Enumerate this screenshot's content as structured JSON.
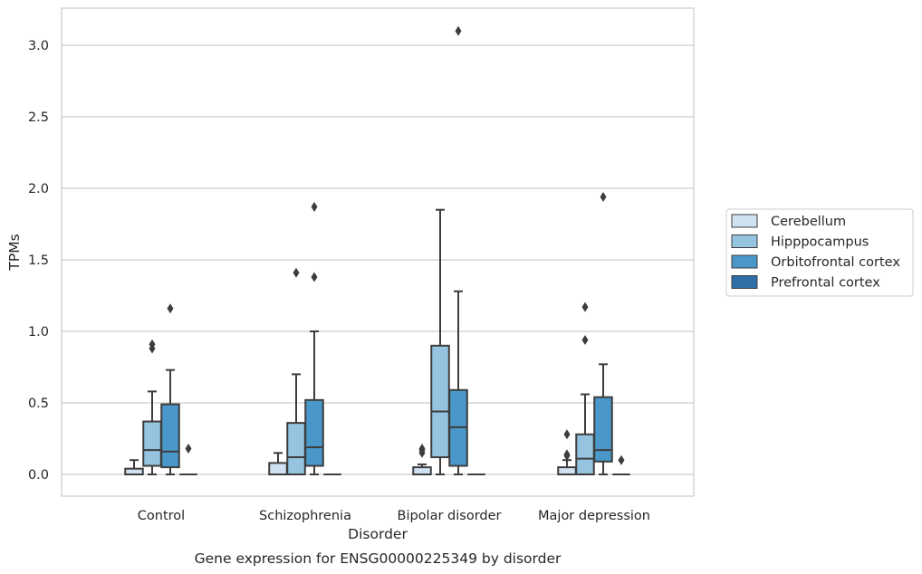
{
  "chart_data": {
    "type": "box",
    "title": "",
    "caption": "Gene expression for ENSG00000225349 by disorder",
    "xlabel": "Disorder",
    "ylabel": "TPMs",
    "ylim": [
      -0.15,
      3.25
    ],
    "yticks": [
      0.0,
      0.5,
      1.0,
      1.5,
      2.0,
      2.5,
      3.0
    ],
    "ytick_labels": [
      "0.0",
      "0.5",
      "1.0",
      "1.5",
      "2.0",
      "2.5",
      "3.0"
    ],
    "grid": "horizontal",
    "legend_position": "right",
    "categories": [
      "Control",
      "Schizophrenia",
      "Bipolar disorder",
      "Major depression"
    ],
    "series": [
      {
        "name": "Cerebellum",
        "color": "#d0e1f2",
        "boxes": [
          {
            "whislo": 0.0,
            "q1": 0.0,
            "med": 0.0,
            "q3": 0.04,
            "whishi": 0.1,
            "fliers": []
          },
          {
            "whislo": 0.0,
            "q1": 0.0,
            "med": 0.0,
            "q3": 0.08,
            "whishi": 0.15,
            "fliers": []
          },
          {
            "whislo": 0.0,
            "q1": 0.0,
            "med": 0.0,
            "q3": 0.05,
            "whishi": 0.07,
            "fliers": [
              0.15,
              0.17,
              0.18
            ]
          },
          {
            "whislo": 0.0,
            "q1": 0.0,
            "med": 0.0,
            "q3": 0.05,
            "whishi": 0.1,
            "fliers": [
              0.13,
              0.14,
              0.28
            ]
          }
        ]
      },
      {
        "name": "Hipppocampus",
        "color": "#94c4df",
        "boxes": [
          {
            "whislo": 0.0,
            "q1": 0.06,
            "med": 0.17,
            "q3": 0.37,
            "whishi": 0.58,
            "fliers": [
              0.88,
              0.91
            ]
          },
          {
            "whislo": 0.0,
            "q1": 0.0,
            "med": 0.12,
            "q3": 0.36,
            "whishi": 0.7,
            "fliers": [
              1.41
            ]
          },
          {
            "whislo": 0.0,
            "q1": 0.12,
            "med": 0.44,
            "q3": 0.9,
            "whishi": 1.85,
            "fliers": []
          },
          {
            "whislo": 0.0,
            "q1": 0.0,
            "med": 0.11,
            "q3": 0.28,
            "whishi": 0.56,
            "fliers": [
              0.94,
              1.17
            ]
          }
        ]
      },
      {
        "name": "Orbitofrontal cortex",
        "color": "#4a98c9",
        "boxes": [
          {
            "whislo": 0.0,
            "q1": 0.05,
            "med": 0.16,
            "q3": 0.49,
            "whishi": 0.73,
            "fliers": [
              1.16
            ]
          },
          {
            "whislo": 0.0,
            "q1": 0.06,
            "med": 0.19,
            "q3": 0.52,
            "whishi": 1.0,
            "fliers": [
              1.38,
              1.87
            ]
          },
          {
            "whislo": 0.0,
            "q1": 0.06,
            "med": 0.33,
            "q3": 0.59,
            "whishi": 1.28,
            "fliers": [
              3.1
            ]
          },
          {
            "whislo": 0.0,
            "q1": 0.09,
            "med": 0.17,
            "q3": 0.54,
            "whishi": 0.77,
            "fliers": [
              1.94
            ]
          }
        ]
      },
      {
        "name": "Prefrontal cortex",
        "color": "#2e6fa7",
        "boxes": [
          {
            "whislo": 0.0,
            "q1": 0.0,
            "med": 0.0,
            "q3": 0.0,
            "whishi": 0.0,
            "fliers": [
              0.18
            ]
          },
          {
            "whislo": 0.0,
            "q1": 0.0,
            "med": 0.0,
            "q3": 0.0,
            "whishi": 0.0,
            "fliers": []
          },
          {
            "whislo": 0.0,
            "q1": 0.0,
            "med": 0.0,
            "q3": 0.0,
            "whishi": 0.0,
            "fliers": []
          },
          {
            "whislo": 0.0,
            "q1": 0.0,
            "med": 0.0,
            "q3": 0.0,
            "whishi": 0.0,
            "fliers": [
              0.1
            ]
          }
        ]
      }
    ]
  }
}
